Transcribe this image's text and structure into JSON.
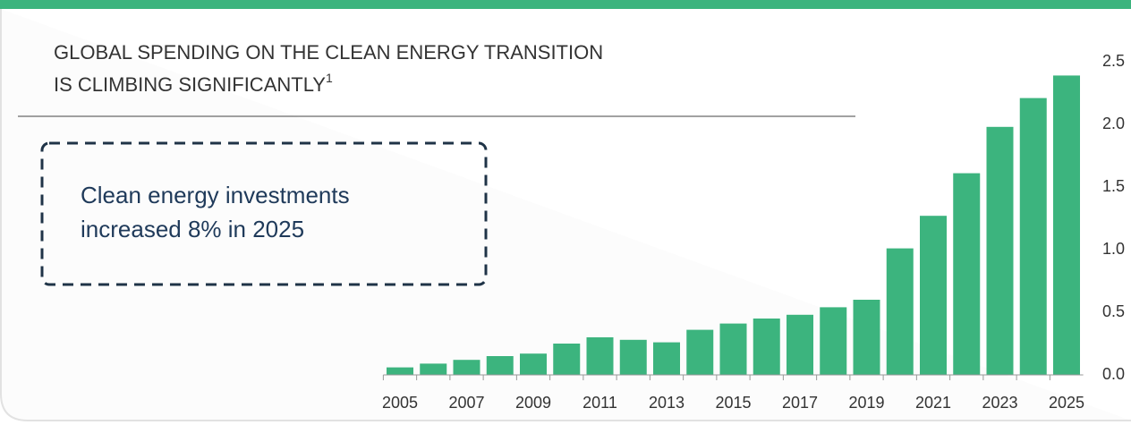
{
  "chart_data": {
    "type": "bar",
    "title_lines": [
      "GLOBAL SPENDING ON THE CLEAN ENERGY TRANSITION",
      "IS CLIMBING SIGNIFICANTLY"
    ],
    "title_footnote": "1",
    "annotation_lines": [
      "Clean energy investments",
      "increased 8% in 2025"
    ],
    "categories": [
      "2005",
      null,
      "2007",
      null,
      "2009",
      null,
      "2011",
      null,
      "2013",
      null,
      "2015",
      null,
      "2017",
      null,
      "2019",
      null,
      "2021",
      null,
      "2023",
      null,
      "2025"
    ],
    "values": [
      0.06,
      0.09,
      0.12,
      0.15,
      0.17,
      0.25,
      0.3,
      0.28,
      0.26,
      0.36,
      0.41,
      0.45,
      0.48,
      0.54,
      0.6,
      1.01,
      1.27,
      1.61,
      1.98,
      2.21,
      2.39
    ],
    "color": "#3cb47e",
    "ylim": [
      0,
      2.5
    ],
    "yticks": [
      {
        "value": 0,
        "label": "0.0"
      },
      0.5,
      {
        "value": 1,
        "label": "1.0"
      },
      1.5,
      {
        "value": 2,
        "label": "2.0"
      },
      2.5
    ]
  }
}
